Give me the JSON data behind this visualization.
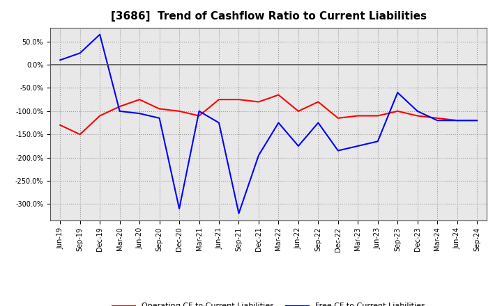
{
  "title": "[3686]  Trend of Cashflow Ratio to Current Liabilities",
  "x_labels": [
    "Jun-19",
    "Sep-19",
    "Dec-19",
    "Mar-20",
    "Jun-20",
    "Sep-20",
    "Dec-20",
    "Mar-21",
    "Jun-21",
    "Sep-21",
    "Dec-21",
    "Mar-22",
    "Jun-22",
    "Sep-22",
    "Dec-22",
    "Mar-23",
    "Jun-23",
    "Sep-23",
    "Dec-23",
    "Mar-24",
    "Jun-24",
    "Sep-24"
  ],
  "operating_cf": [
    -130,
    -150,
    -110,
    -90,
    -75,
    -95,
    -100,
    -110,
    -75,
    -75,
    -80,
    -65,
    -100,
    -80,
    -115,
    -110,
    -110,
    -100,
    -110,
    -115,
    -120,
    -120
  ],
  "free_cf": [
    10,
    25,
    65,
    -100,
    -105,
    -115,
    -310,
    -100,
    -125,
    -320,
    -195,
    -125,
    -175,
    -125,
    -185,
    -175,
    -165,
    -60,
    -100,
    -120,
    -120,
    -120
  ],
  "operating_color": "#ff0000",
  "free_color": "#0000ff",
  "ylim": [
    -335,
    80
  ],
  "yticks": [
    50,
    0,
    -50,
    -100,
    -150,
    -200,
    -250,
    -300
  ],
  "background_color": "#ffffff",
  "plot_bg_color": "#e8e8e8",
  "grid_color": "#999999",
  "zero_line_color": "#555555",
  "title_fontsize": 11,
  "tick_fontsize": 7,
  "legend_fontsize": 8
}
